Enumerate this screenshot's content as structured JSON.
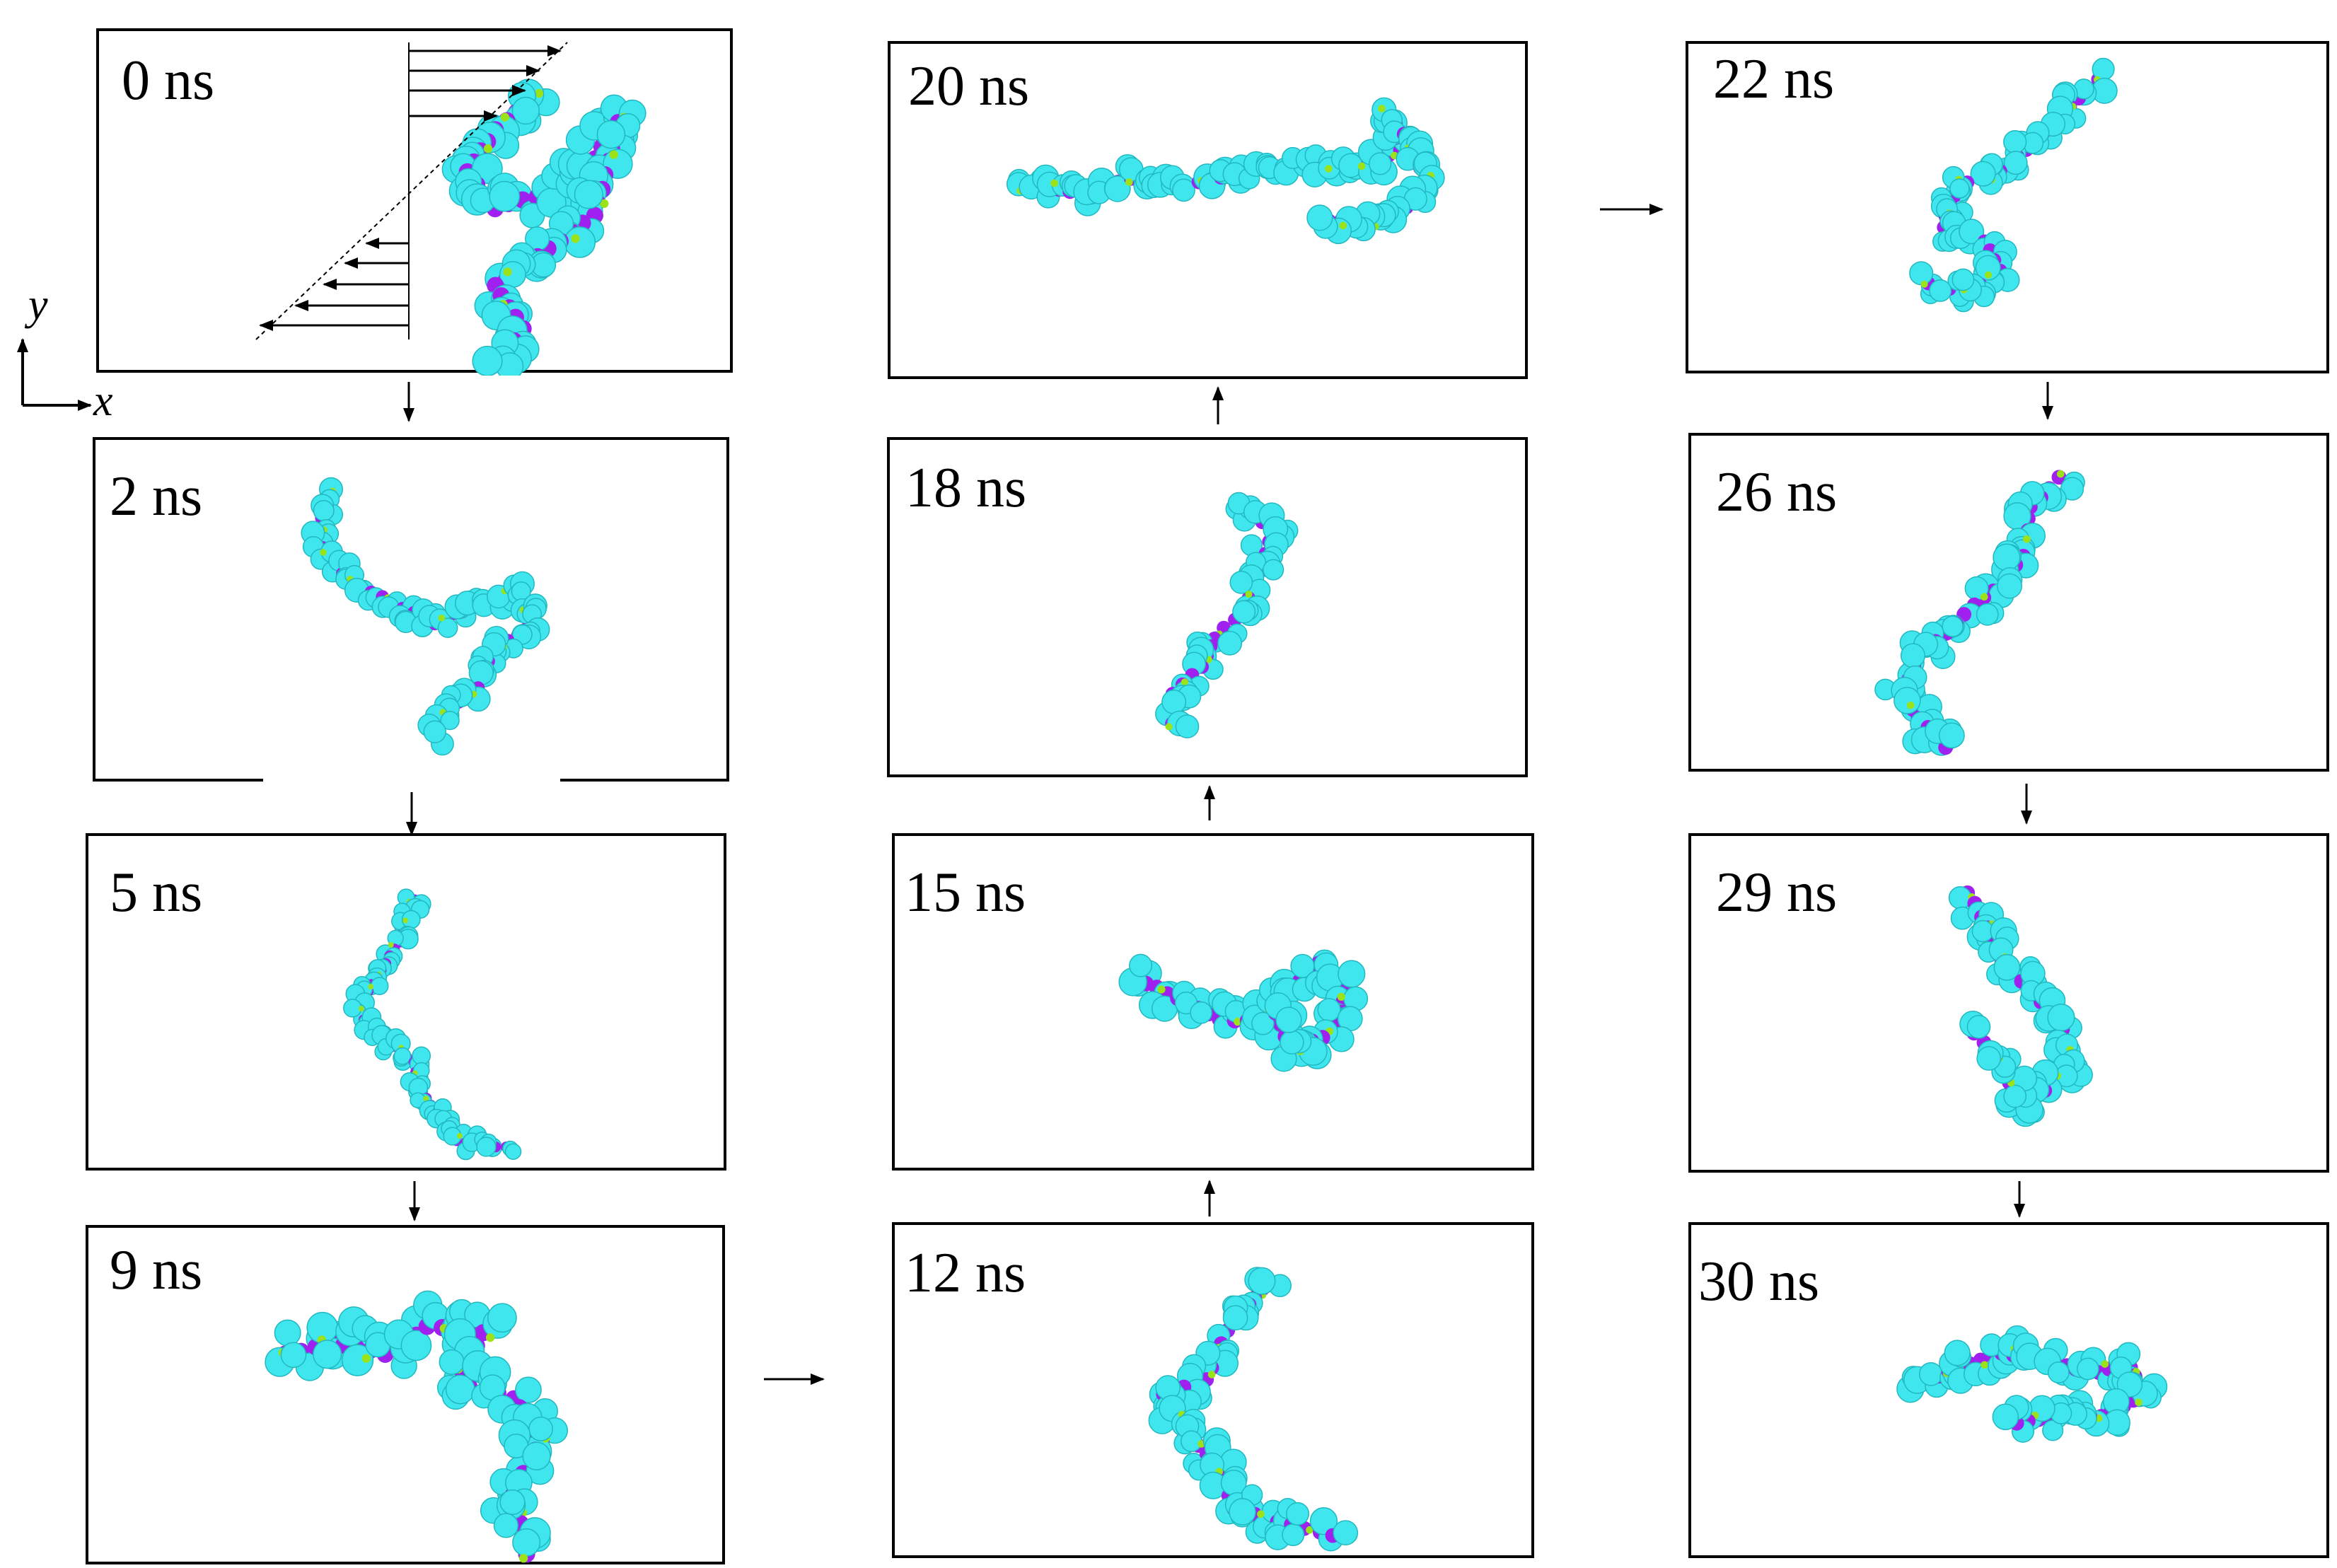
{
  "axes": {
    "x": "x",
    "y": "y"
  },
  "colors": {
    "bead": "#40e6ee",
    "bead_edge": "#22b8c0",
    "link": "#a020f0",
    "joint": "#9be21b",
    "frame": "#000000"
  },
  "panels": [
    {
      "id": "p0",
      "label": "0 ns"
    },
    {
      "id": "p2",
      "label": "2 ns"
    },
    {
      "id": "p5",
      "label": "5 ns"
    },
    {
      "id": "p9",
      "label": "9 ns"
    },
    {
      "id": "p12",
      "label": "12 ns"
    },
    {
      "id": "p15",
      "label": "15 ns"
    },
    {
      "id": "p18",
      "label": "18 ns"
    },
    {
      "id": "p20",
      "label": "20 ns"
    },
    {
      "id": "p22",
      "label": "22 ns"
    },
    {
      "id": "p26",
      "label": "26 ns"
    },
    {
      "id": "p29",
      "label": "29 ns"
    },
    {
      "id": "p30",
      "label": "30 ns"
    }
  ],
  "sequence": [
    "0 ns",
    "2 ns",
    "5 ns",
    "9 ns",
    "12 ns",
    "15 ns",
    "18 ns",
    "20 ns",
    "22 ns",
    "26 ns",
    "29 ns",
    "30 ns"
  ]
}
